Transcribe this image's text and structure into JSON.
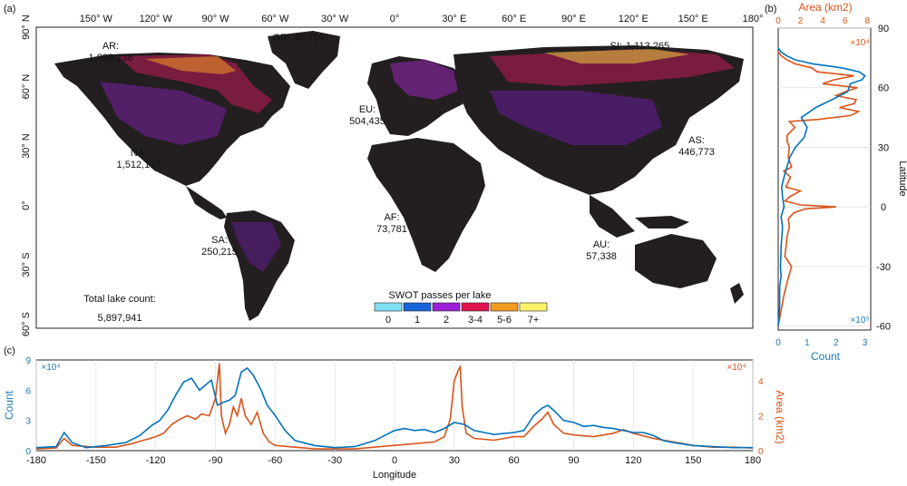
{
  "panels": {
    "a": "(a)",
    "b": "(b)",
    "c": "(c)"
  },
  "colors": {
    "count": "#0072bd",
    "area": "#d95319",
    "land": "#231f20"
  },
  "map": {
    "lon_ticks": [
      "150° W",
      "120° W",
      "90° W",
      "60° W",
      "30° W",
      "0°",
      "30° E",
      "60° E",
      "90° E",
      "120° E",
      "150° E",
      "180°"
    ],
    "lat_ticks": [
      "90° N",
      "60° N",
      "30° N",
      "0°",
      "30° S",
      "60° S"
    ],
    "regions": [
      {
        "name": "AR:",
        "count": "1,899,238"
      },
      {
        "name": "GR:",
        "count": "40,759"
      },
      {
        "name": "SI:",
        "count": "1,113,265"
      },
      {
        "name": "EU:",
        "count": "504,435"
      },
      {
        "name": "NA:",
        "count": "1,512,137"
      },
      {
        "name": "AS:",
        "count": "446,773"
      },
      {
        "name": "AF:",
        "count": "73,781"
      },
      {
        "name": "SA:",
        "count": "250,215"
      },
      {
        "name": "AU:",
        "count": "57,338"
      }
    ],
    "total_label": "Total lake count:",
    "total_value": "5,897,941",
    "legend_title": "SWOT passes per lake",
    "legend": [
      {
        "label": "0",
        "color": "#7fe0f5"
      },
      {
        "label": "1",
        "color": "#1565d8"
      },
      {
        "label": "2",
        "color": "#9b1fd6"
      },
      {
        "label": "3-4",
        "color": "#e0144e"
      },
      {
        "label": "5-6",
        "color": "#f39a21"
      },
      {
        "label": "7+",
        "color": "#fff36b"
      }
    ]
  },
  "chart_data": [
    {
      "type": "line",
      "panel": "b",
      "xlabel_bottom": "Count",
      "xlabel_top": "Area (km2)",
      "ylabel": "Latitude",
      "bottom_ticks": [
        "0",
        "1",
        "2",
        "3"
      ],
      "bottom_multiplier": "×10⁵",
      "top_ticks": [
        "0",
        "2",
        "4",
        "6",
        "8"
      ],
      "top_multiplier": "×10⁴",
      "y_ticks": [
        "90",
        "60",
        "30",
        "0",
        "-30",
        "-60"
      ],
      "ylim": [
        -62,
        90
      ],
      "series": [
        {
          "axis": "count",
          "points": [
            [
              -60,
              0
            ],
            [
              -50,
              0.05
            ],
            [
              -40,
              0.05
            ],
            [
              -35,
              0.1
            ],
            [
              -30,
              0.08
            ],
            [
              -20,
              0.1
            ],
            [
              -10,
              0.15
            ],
            [
              -5,
              0.1
            ],
            [
              0,
              0.2
            ],
            [
              5,
              0.15
            ],
            [
              10,
              0.12
            ],
            [
              15,
              0.2
            ],
            [
              20,
              0.3
            ],
            [
              25,
              0.4
            ],
            [
              30,
              0.6
            ],
            [
              35,
              0.9
            ],
            [
              40,
              1.0
            ],
            [
              45,
              0.8
            ],
            [
              50,
              1.3
            ],
            [
              55,
              2.0
            ],
            [
              58,
              2.4
            ],
            [
              62,
              2.5
            ],
            [
              64,
              2.9
            ],
            [
              66,
              3.0
            ],
            [
              68,
              2.8
            ],
            [
              70,
              2.2
            ],
            [
              72,
              1.2
            ],
            [
              74,
              0.6
            ],
            [
              76,
              0.3
            ],
            [
              78,
              0.1
            ],
            [
              80,
              0
            ]
          ]
        },
        {
          "axis": "area",
          "points": [
            [
              -60,
              0
            ],
            [
              -45,
              0.5
            ],
            [
              -38,
              0.8
            ],
            [
              -30,
              1.2
            ],
            [
              -25,
              0.6
            ],
            [
              -15,
              0.8
            ],
            [
              -10,
              1.0
            ],
            [
              -6,
              0.9
            ],
            [
              -3,
              1.4
            ],
            [
              -1,
              2.4
            ],
            [
              0,
              5.2
            ],
            [
              1,
              2.0
            ],
            [
              3,
              0.6
            ],
            [
              5,
              1.0
            ],
            [
              8,
              2.0
            ],
            [
              10,
              0.7
            ],
            [
              15,
              1.1
            ],
            [
              18,
              0.5
            ],
            [
              20,
              1.2
            ],
            [
              25,
              0.9
            ],
            [
              30,
              1.0
            ],
            [
              33,
              0.8
            ],
            [
              36,
              0.8
            ],
            [
              40,
              1.5
            ],
            [
              43,
              1.0
            ],
            [
              44,
              3.5
            ],
            [
              46,
              6.5
            ],
            [
              48,
              7.2
            ],
            [
              50,
              5.5
            ],
            [
              52,
              6.8
            ],
            [
              54,
              7.0
            ],
            [
              56,
              5.2
            ],
            [
              58,
              6.0
            ],
            [
              60,
              7.1
            ],
            [
              62,
              4.0
            ],
            [
              64,
              5.0
            ],
            [
              66,
              6.8
            ],
            [
              68,
              3.5
            ],
            [
              70,
              3.0
            ],
            [
              72,
              1.5
            ],
            [
              74,
              0.8
            ],
            [
              76,
              0.3
            ],
            [
              78,
              0
            ]
          ]
        }
      ]
    },
    {
      "type": "line",
      "panel": "c",
      "xlabel": "Longitude",
      "ylabel_left": "Count",
      "ylabel_right": "Area (km2)",
      "x_ticks": [
        "-180",
        "-150",
        "-120",
        "-90",
        "-60",
        "-30",
        "0",
        "30",
        "60",
        "90",
        "120",
        "150",
        "180"
      ],
      "xlim": [
        -180,
        180
      ],
      "left_ticks": [
        "0",
        "3",
        "6",
        "9"
      ],
      "left_multiplier": "×10⁴",
      "left_ylim": [
        0,
        9
      ],
      "right_ticks": [
        "0",
        "2",
        "4"
      ],
      "right_multiplier": "×10⁴",
      "right_ylim": [
        0,
        5.2
      ],
      "series": [
        {
          "axis": "count",
          "points": [
            [
              -180,
              0.3
            ],
            [
              -170,
              0.4
            ],
            [
              -166,
              1.8
            ],
            [
              -162,
              0.8
            ],
            [
              -155,
              0.3
            ],
            [
              -145,
              0.5
            ],
            [
              -135,
              0.8
            ],
            [
              -128,
              1.5
            ],
            [
              -122,
              2.5
            ],
            [
              -118,
              3.0
            ],
            [
              -114,
              4.0
            ],
            [
              -110,
              5.5
            ],
            [
              -106,
              6.8
            ],
            [
              -102,
              7.2
            ],
            [
              -98,
              6.0
            ],
            [
              -95,
              6.5
            ],
            [
              -92,
              7.0
            ],
            [
              -89,
              4.5
            ],
            [
              -86,
              4.8
            ],
            [
              -83,
              5.0
            ],
            [
              -80,
              5.5
            ],
            [
              -77,
              7.8
            ],
            [
              -74,
              8.2
            ],
            [
              -71,
              7.5
            ],
            [
              -67,
              6.0
            ],
            [
              -64,
              4.5
            ],
            [
              -60,
              3.5
            ],
            [
              -55,
              2.0
            ],
            [
              -50,
              1.0
            ],
            [
              -40,
              0.5
            ],
            [
              -30,
              0.3
            ],
            [
              -20,
              0.4
            ],
            [
              -10,
              1.0
            ],
            [
              -5,
              1.5
            ],
            [
              0,
              2.0
            ],
            [
              5,
              2.2
            ],
            [
              10,
              2.0
            ],
            [
              15,
              2.1
            ],
            [
              20,
              1.8
            ],
            [
              25,
              2.2
            ],
            [
              30,
              2.8
            ],
            [
              35,
              2.6
            ],
            [
              40,
              2.0
            ],
            [
              45,
              1.8
            ],
            [
              50,
              1.6
            ],
            [
              55,
              1.7
            ],
            [
              60,
              1.8
            ],
            [
              65,
              2.0
            ],
            [
              70,
              3.5
            ],
            [
              74,
              4.2
            ],
            [
              77,
              4.5
            ],
            [
              80,
              4.0
            ],
            [
              85,
              3.0
            ],
            [
              90,
              2.8
            ],
            [
              95,
              2.4
            ],
            [
              100,
              2.5
            ],
            [
              105,
              2.3
            ],
            [
              110,
              2.2
            ],
            [
              115,
              2.0
            ],
            [
              120,
              1.8
            ],
            [
              125,
              1.8
            ],
            [
              130,
              1.5
            ],
            [
              135,
              1.0
            ],
            [
              140,
              0.8
            ],
            [
              150,
              0.5
            ],
            [
              160,
              0.4
            ],
            [
              170,
              0.3
            ],
            [
              180,
              0.3
            ]
          ]
        },
        {
          "axis": "area",
          "points": [
            [
              -180,
              0.1
            ],
            [
              -170,
              0.15
            ],
            [
              -166,
              0.7
            ],
            [
              -162,
              0.3
            ],
            [
              -150,
              0.2
            ],
            [
              -140,
              0.2
            ],
            [
              -132,
              0.4
            ],
            [
              -126,
              0.6
            ],
            [
              -120,
              0.8
            ],
            [
              -116,
              1.0
            ],
            [
              -112,
              1.5
            ],
            [
              -108,
              1.8
            ],
            [
              -104,
              2.0
            ],
            [
              -100,
              1.8
            ],
            [
              -97,
              2.1
            ],
            [
              -93,
              2.0
            ],
            [
              -90,
              3.0
            ],
            [
              -88,
              5.0
            ],
            [
              -87,
              2.0
            ],
            [
              -85,
              1.0
            ],
            [
              -83,
              1.5
            ],
            [
              -81,
              2.5
            ],
            [
              -79,
              2.0
            ],
            [
              -77,
              3.0
            ],
            [
              -75,
              2.0
            ],
            [
              -72,
              1.5
            ],
            [
              -69,
              2.2
            ],
            [
              -66,
              1.0
            ],
            [
              -63,
              0.5
            ],
            [
              -60,
              0.3
            ],
            [
              -50,
              0.2
            ],
            [
              -40,
              0.1
            ],
            [
              -20,
              0.1
            ],
            [
              0,
              0.3
            ],
            [
              10,
              0.4
            ],
            [
              20,
              0.5
            ],
            [
              25,
              0.8
            ],
            [
              28,
              1.8
            ],
            [
              30,
              4.0
            ],
            [
              32,
              4.6
            ],
            [
              33,
              4.8
            ],
            [
              34,
              2.5
            ],
            [
              36,
              1.0
            ],
            [
              40,
              0.7
            ],
            [
              50,
              0.6
            ],
            [
              60,
              0.8
            ],
            [
              65,
              0.8
            ],
            [
              70,
              1.4
            ],
            [
              74,
              1.8
            ],
            [
              77,
              2.2
            ],
            [
              80,
              1.5
            ],
            [
              85,
              1.0
            ],
            [
              90,
              0.9
            ],
            [
              100,
              0.8
            ],
            [
              110,
              1.0
            ],
            [
              115,
              1.2
            ],
            [
              120,
              1.0
            ],
            [
              130,
              0.7
            ],
            [
              140,
              0.5
            ],
            [
              150,
              0.3
            ],
            [
              160,
              0.2
            ],
            [
              170,
              0.2
            ],
            [
              180,
              0.15
            ]
          ]
        }
      ]
    }
  ]
}
